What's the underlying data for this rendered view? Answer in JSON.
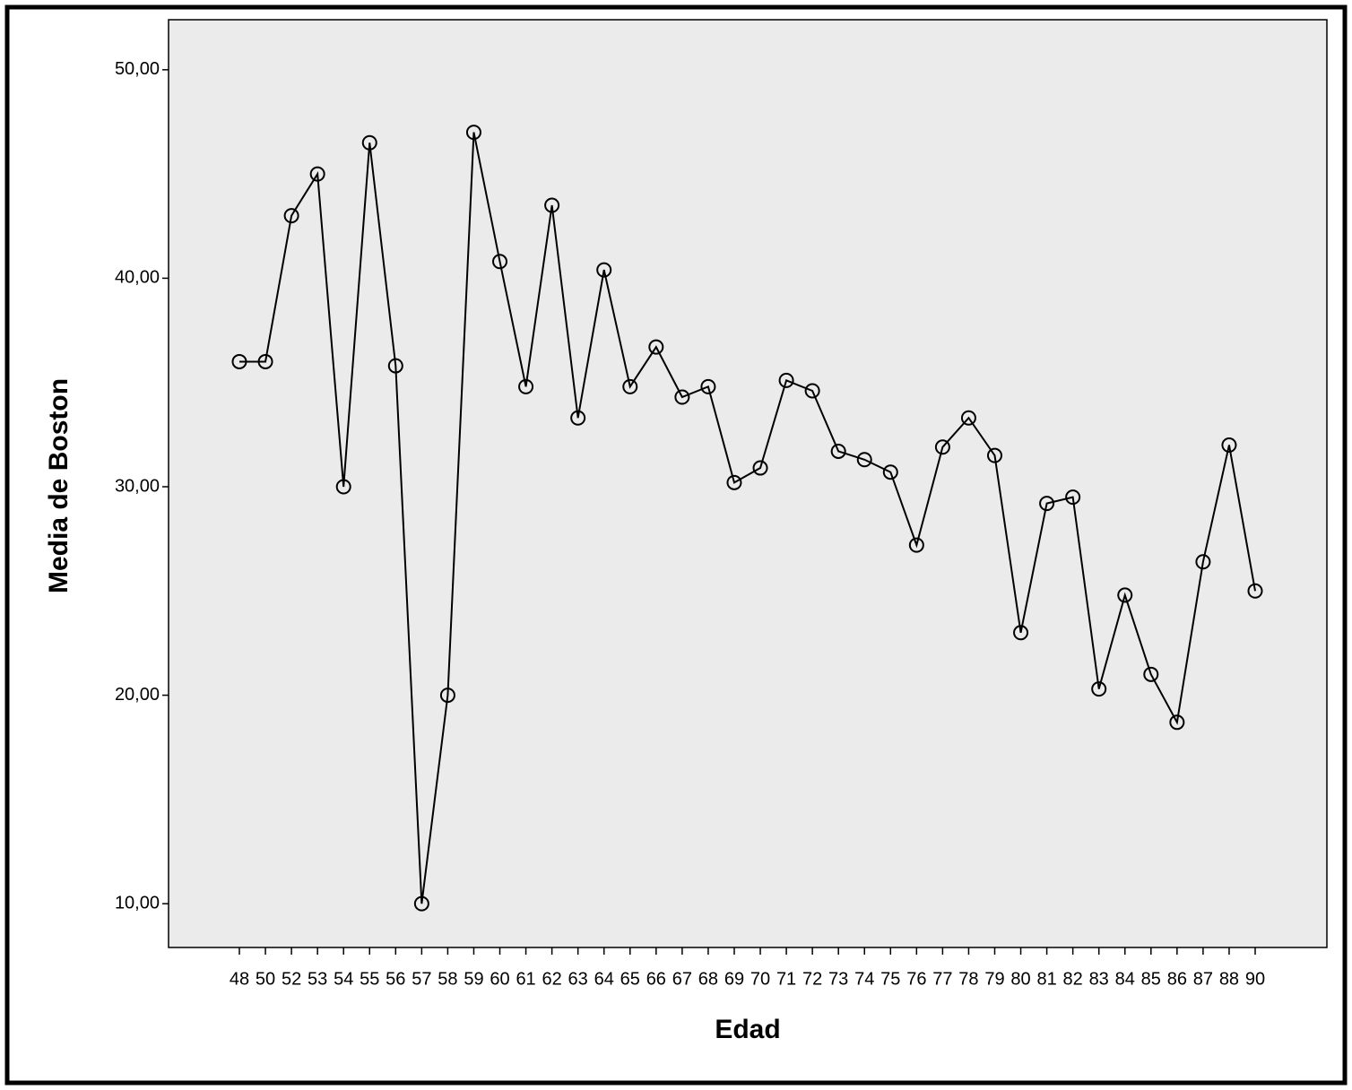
{
  "chart_data": {
    "type": "line",
    "x_label": "Edad",
    "y_label": "Media de Boston",
    "categories": [
      "48",
      "50",
      "52",
      "53",
      "54",
      "55",
      "56",
      "57",
      "58",
      "59",
      "60",
      "61",
      "62",
      "63",
      "64",
      "65",
      "66",
      "67",
      "68",
      "69",
      "70",
      "71",
      "72",
      "73",
      "74",
      "75",
      "76",
      "77",
      "78",
      "79",
      "80",
      "81",
      "82",
      "83",
      "84",
      "85",
      "86",
      "87",
      "88",
      "90"
    ],
    "values": [
      36,
      36,
      43,
      45,
      30,
      46.5,
      35.8,
      10,
      20,
      47,
      40.8,
      34.8,
      43.5,
      33.3,
      40.4,
      34.8,
      36.7,
      34.3,
      34.8,
      30.2,
      30.9,
      35.1,
      34.6,
      31.7,
      31.3,
      30.7,
      27.2,
      31.9,
      33.3,
      31.5,
      23,
      29.2,
      29.5,
      20.3,
      24.8,
      21,
      18.7,
      26.4,
      32,
      25
    ],
    "color": "#000000",
    "ylim": [
      7.9,
      52.4
    ],
    "yticks": [
      {
        "value": 10,
        "label": "10,00"
      },
      {
        "value": 20,
        "label": "20,00"
      },
      {
        "value": 30,
        "label": "30,00"
      },
      {
        "value": 40,
        "label": "40,00"
      },
      {
        "value": 50,
        "label": "50,00"
      }
    ],
    "grid": false
  }
}
